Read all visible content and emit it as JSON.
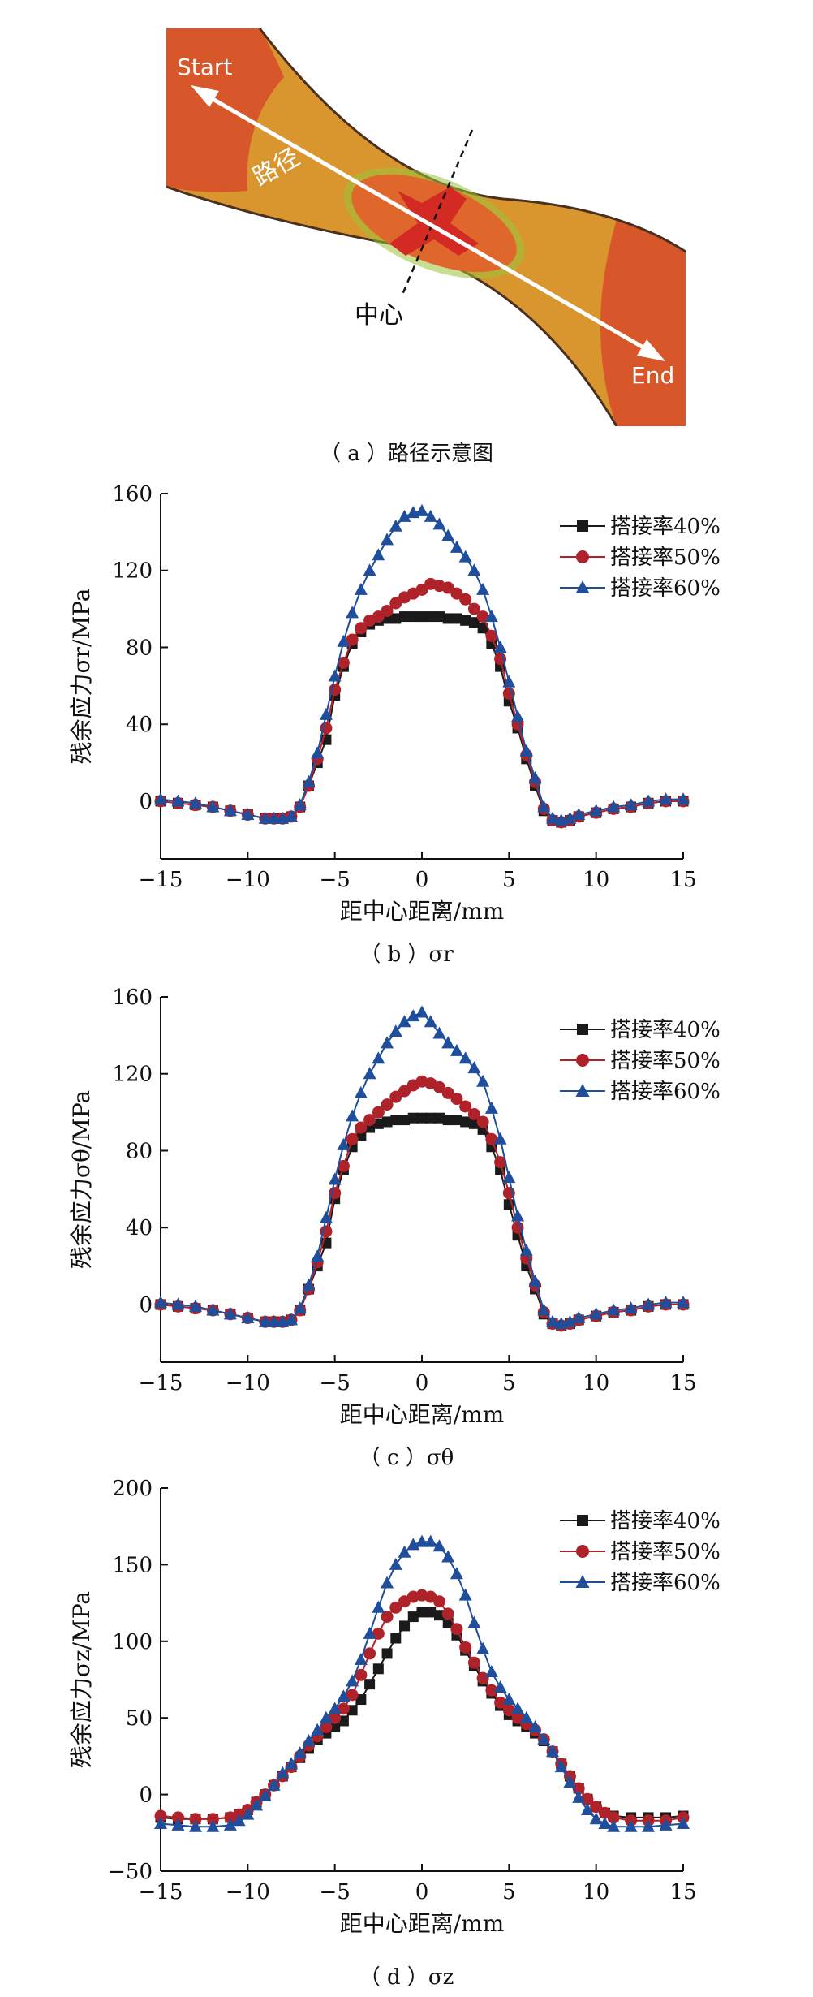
{
  "panel_a": {
    "start": "Start",
    "end": "End",
    "path_label": "路径",
    "center_label": "中心",
    "caption": "（ a ）路径示意图"
  },
  "captions": {
    "b": "（ b ）σr",
    "c": "（ c ）σθ",
    "d": "（ d ）σz"
  },
  "colors": {
    "s40": "#1a1a1a",
    "s50": "#b0222a",
    "s60": "#1f4e9c"
  },
  "chart_data": [
    {
      "id": "b",
      "type": "line",
      "xlabel": "距中心距离/mm",
      "ylabel": "残余应力σr/MPa",
      "xlim": [
        -15,
        15
      ],
      "ylim": [
        -30,
        160
      ],
      "xticks": [
        -15,
        -10,
        -5,
        0,
        5,
        10,
        15
      ],
      "xtick_labels": [
        "−15",
        "−10",
        "−5",
        "0",
        "5",
        "10",
        "15"
      ],
      "yticks": [
        0,
        40,
        80,
        120,
        160
      ],
      "ytick_labels": [
        "0",
        "40",
        "80",
        "120",
        "160"
      ],
      "legend_position": "top-right",
      "x": [
        -15,
        -14,
        -13,
        -12,
        -11,
        -10,
        -9,
        -8.5,
        -8,
        -7.5,
        -7,
        -6.5,
        -6,
        -5.5,
        -5,
        -4.5,
        -4,
        -3.5,
        -3,
        -2.5,
        -2,
        -1.5,
        -1,
        -0.5,
        0,
        0.5,
        1,
        1.5,
        2,
        2.5,
        3,
        3.5,
        4,
        4.5,
        5,
        5.5,
        6,
        6.5,
        7,
        7.5,
        8,
        8.5,
        9,
        10,
        11,
        12,
        13,
        14,
        15
      ],
      "series": [
        {
          "name": "搭接率40%",
          "marker": "square",
          "values": [
            0,
            -1,
            -2,
            -3,
            -5,
            -7,
            -9,
            -9,
            -9,
            -8,
            -3,
            8,
            20,
            32,
            55,
            70,
            82,
            88,
            92,
            94,
            95,
            95,
            96,
            96,
            96,
            96,
            96,
            95,
            95,
            94,
            93,
            90,
            82,
            70,
            52,
            38,
            22,
            8,
            -5,
            -10,
            -11,
            -10,
            -8,
            -6,
            -4,
            -3,
            -1,
            0,
            0
          ]
        },
        {
          "name": "搭接率50%",
          "marker": "circle",
          "values": [
            0,
            -1,
            -2,
            -3,
            -5,
            -7,
            -9,
            -9,
            -9,
            -8,
            -3,
            8,
            22,
            38,
            58,
            72,
            84,
            90,
            94,
            96,
            99,
            103,
            106,
            108,
            110,
            113,
            112,
            111,
            108,
            105,
            100,
            96,
            86,
            74,
            56,
            40,
            24,
            10,
            -4,
            -10,
            -11,
            -10,
            -8,
            -6,
            -4,
            -3,
            -1,
            0,
            0
          ]
        },
        {
          "name": "搭接率60%",
          "marker": "triangle",
          "values": [
            1,
            0,
            -1,
            -3,
            -5,
            -7,
            -9,
            -9,
            -9,
            -8,
            -2,
            10,
            25,
            45,
            65,
            83,
            98,
            110,
            120,
            128,
            136,
            143,
            148,
            150,
            151,
            148,
            144,
            138,
            132,
            127,
            120,
            110,
            96,
            80,
            62,
            44,
            26,
            12,
            -3,
            -9,
            -10,
            -9,
            -7,
            -5,
            -3,
            -2,
            0,
            1,
            1
          ]
        }
      ]
    },
    {
      "id": "c",
      "type": "line",
      "xlabel": "距中心距离/mm",
      "ylabel": "残余应力σθ/MPa",
      "xlim": [
        -15,
        15
      ],
      "ylim": [
        -30,
        160
      ],
      "xticks": [
        -15,
        -10,
        -5,
        0,
        5,
        10,
        15
      ],
      "xtick_labels": [
        "−15",
        "−10",
        "−5",
        "0",
        "5",
        "10",
        "15"
      ],
      "yticks": [
        0,
        40,
        80,
        120,
        160
      ],
      "ytick_labels": [
        "0",
        "40",
        "80",
        "120",
        "160"
      ],
      "legend_position": "top-right",
      "x": [
        -15,
        -14,
        -13,
        -12,
        -11,
        -10,
        -9,
        -8.5,
        -8,
        -7.5,
        -7,
        -6.5,
        -6,
        -5.5,
        -5,
        -4.5,
        -4,
        -3.5,
        -3,
        -2.5,
        -2,
        -1.5,
        -1,
        -0.5,
        0,
        0.5,
        1,
        1.5,
        2,
        2.5,
        3,
        3.5,
        4,
        4.5,
        5,
        5.5,
        6,
        6.5,
        7,
        7.5,
        8,
        8.5,
        9,
        10,
        11,
        12,
        13,
        14,
        15
      ],
      "series": [
        {
          "name": "搭接率40%",
          "marker": "square",
          "values": [
            0,
            -1,
            -2,
            -3,
            -5,
            -7,
            -9,
            -9,
            -9,
            -8,
            -3,
            8,
            20,
            32,
            55,
            70,
            82,
            88,
            92,
            94,
            95,
            96,
            96,
            97,
            97,
            97,
            97,
            96,
            96,
            95,
            94,
            91,
            82,
            70,
            52,
            36,
            20,
            8,
            -5,
            -10,
            -11,
            -10,
            -8,
            -6,
            -4,
            -3,
            -1,
            0,
            0
          ]
        },
        {
          "name": "搭接率50%",
          "marker": "circle",
          "values": [
            0,
            -1,
            -2,
            -3,
            -5,
            -7,
            -9,
            -9,
            -9,
            -8,
            -3,
            8,
            22,
            38,
            58,
            72,
            86,
            92,
            96,
            100,
            104,
            108,
            111,
            114,
            116,
            115,
            113,
            110,
            107,
            103,
            99,
            95,
            86,
            74,
            58,
            40,
            24,
            10,
            -4,
            -10,
            -11,
            -10,
            -8,
            -6,
            -4,
            -3,
            -1,
            0,
            0
          ]
        },
        {
          "name": "搭接率60%",
          "marker": "triangle",
          "values": [
            1,
            0,
            -1,
            -3,
            -5,
            -7,
            -9,
            -9,
            -9,
            -8,
            -2,
            10,
            25,
            45,
            65,
            83,
            98,
            110,
            120,
            128,
            136,
            142,
            147,
            150,
            152,
            147,
            141,
            136,
            132,
            128,
            123,
            116,
            102,
            86,
            66,
            46,
            28,
            12,
            -3,
            -9,
            -10,
            -9,
            -7,
            -5,
            -3,
            -2,
            0,
            1,
            1
          ]
        }
      ]
    },
    {
      "id": "d",
      "type": "line",
      "xlabel": "距中心距离/mm",
      "ylabel": "残余应力σz/MPa",
      "xlim": [
        -15,
        15
      ],
      "ylim": [
        -50,
        200
      ],
      "xticks": [
        -15,
        -10,
        -5,
        0,
        5,
        10,
        15
      ],
      "xtick_labels": [
        "−15",
        "−10",
        "−5",
        "0",
        "5",
        "10",
        "15"
      ],
      "yticks": [
        -50,
        0,
        50,
        100,
        150,
        200
      ],
      "ytick_labels": [
        "−50",
        "0",
        "50",
        "100",
        "150",
        "200"
      ],
      "legend_position": "top-right",
      "x": [
        -15,
        -14,
        -13,
        -12,
        -11,
        -10.5,
        -10,
        -9.5,
        -9,
        -8.5,
        -8,
        -7.5,
        -7,
        -6.5,
        -6,
        -5.5,
        -5,
        -4.5,
        -4,
        -3.5,
        -3,
        -2.5,
        -2,
        -1.5,
        -1,
        -0.5,
        0,
        0.5,
        1,
        1.5,
        2,
        2.5,
        3,
        3.5,
        4,
        4.5,
        5,
        5.5,
        6,
        6.5,
        7,
        7.5,
        8,
        8.5,
        9,
        9.5,
        10,
        10.5,
        11,
        12,
        13,
        14,
        15
      ],
      "series": [
        {
          "name": "搭接率40%",
          "marker": "square",
          "values": [
            -15,
            -16,
            -16,
            -16,
            -15,
            -13,
            -10,
            -5,
            0,
            6,
            12,
            18,
            24,
            30,
            36,
            40,
            44,
            48,
            55,
            62,
            72,
            82,
            92,
            102,
            110,
            116,
            119,
            119,
            117,
            112,
            104,
            94,
            84,
            74,
            66,
            58,
            52,
            48,
            44,
            40,
            35,
            28,
            20,
            12,
            4,
            -3,
            -8,
            -12,
            -14,
            -15,
            -15,
            -15,
            -14
          ]
        },
        {
          "name": "搭接率50%",
          "marker": "circle",
          "values": [
            -14,
            -15,
            -16,
            -16,
            -15,
            -13,
            -10,
            -5,
            0,
            6,
            12,
            18,
            25,
            32,
            38,
            44,
            50,
            56,
            65,
            78,
            92,
            105,
            116,
            122,
            126,
            129,
            130,
            129,
            126,
            118,
            108,
            96,
            86,
            76,
            68,
            60,
            55,
            50,
            46,
            42,
            36,
            28,
            20,
            12,
            4,
            -3,
            -8,
            -12,
            -15,
            -17,
            -17,
            -17,
            -15
          ]
        },
        {
          "name": "搭接率60%",
          "marker": "triangle",
          "values": [
            -19,
            -20,
            -21,
            -21,
            -20,
            -17,
            -13,
            -7,
            -1,
            6,
            14,
            20,
            27,
            35,
            42,
            50,
            56,
            64,
            74,
            88,
            105,
            122,
            138,
            150,
            158,
            163,
            165,
            165,
            162,
            155,
            144,
            130,
            112,
            95,
            80,
            70,
            62,
            56,
            50,
            44,
            36,
            28,
            18,
            8,
            -2,
            -10,
            -16,
            -19,
            -21,
            -21,
            -21,
            -20,
            -19
          ]
        }
      ]
    }
  ]
}
